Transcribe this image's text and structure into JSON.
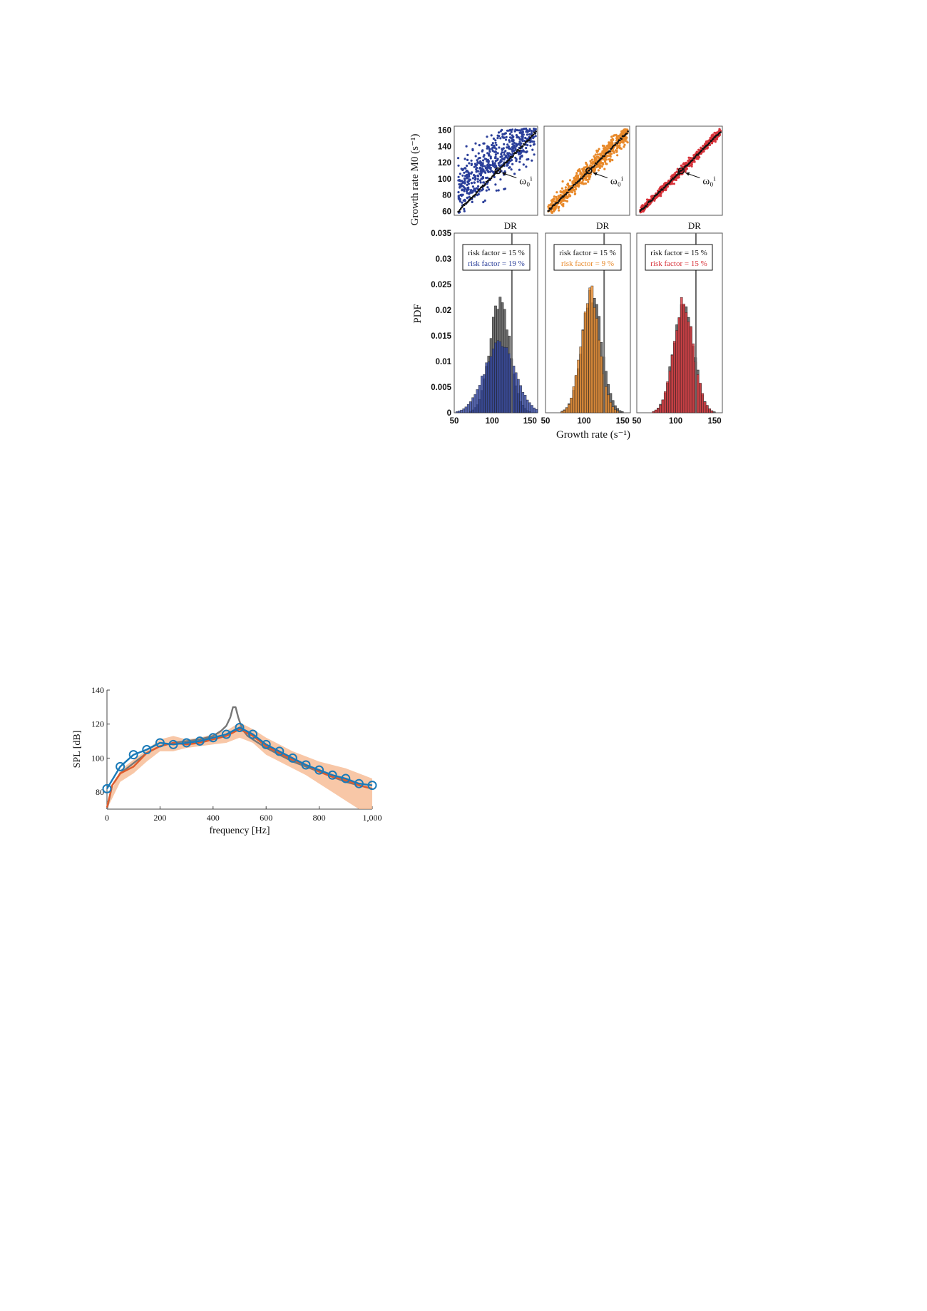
{
  "chart_data": [
    {
      "type": "scatter",
      "panel": "scatter-grid",
      "ylabel": "Growth rate M0 (s⁻¹)",
      "yticks": [
        60,
        80,
        100,
        120,
        140,
        160
      ],
      "ylim": [
        55,
        165
      ],
      "annotation": "ω₀ⁱ",
      "panels": [
        {
          "name": "blue",
          "color": "#2b3f9a",
          "marker": [
            110,
            110
          ]
        },
        {
          "name": "orange",
          "color": "#e8892a",
          "marker": [
            110,
            110
          ]
        },
        {
          "name": "red",
          "color": "#d8333a",
          "marker": [
            110,
            110
          ]
        }
      ]
    },
    {
      "type": "bar",
      "panel": "histograms",
      "xlabel": "Growth rate (s⁻¹)",
      "ylabel": "PDF",
      "xticks": [
        50,
        100,
        150
      ],
      "xlim": [
        50,
        160
      ],
      "ylim": [
        0,
        0.035
      ],
      "yticks": [
        "0",
        "0.005",
        "0.01",
        "0.015",
        "0.02",
        "0.025",
        "0.03",
        "0.035"
      ],
      "dr_label": "DR",
      "dr_value": 126,
      "panels": [
        {
          "name": "blue",
          "color": "#2b3f9a",
          "legend": [
            "risk factor = 15 %",
            "risk factor = 19 %"
          ],
          "ref_peak": 0.022,
          "ref_mean": 110,
          "ref_sd": 13,
          "mean": 110,
          "sd": 20,
          "peak": 0.0135
        },
        {
          "name": "orange",
          "color": "#e8892a",
          "legend": [
            "risk factor = 15 %",
            "risk factor = 9 %"
          ],
          "ref_peak": 0.023,
          "ref_mean": 110,
          "ref_sd": 13,
          "mean": 108,
          "sd": 12,
          "peak": 0.0235
        },
        {
          "name": "red",
          "color": "#d8333a",
          "legend": [
            "risk factor = 15 %",
            "risk factor = 15 %"
          ],
          "ref_peak": 0.0215,
          "ref_mean": 110,
          "ref_sd": 13,
          "mean": 110,
          "sd": 13,
          "peak": 0.0215
        }
      ]
    },
    {
      "type": "line",
      "panel": "spl",
      "xlabel": "frequency [Hz]",
      "ylabel": "SPL [dB]",
      "xticks": [
        "0",
        "200",
        "400",
        "600",
        "800",
        "1,000"
      ],
      "xtick_values": [
        0,
        200,
        400,
        600,
        800,
        1000
      ],
      "yticks": [
        80,
        100,
        120,
        140
      ],
      "xlim": [
        0,
        1000
      ],
      "ylim": [
        70,
        140
      ],
      "series": [
        {
          "color": "#777777",
          "x": [
            0,
            20,
            50,
            100,
            150,
            200,
            250,
            300,
            350,
            400,
            430,
            450,
            465,
            475,
            485,
            495,
            510,
            530,
            560,
            600,
            650,
            700,
            750,
            800,
            850,
            900,
            950,
            1000
          ],
          "y": [
            70,
            84,
            91,
            97,
            103,
            107,
            109,
            110,
            111,
            113,
            116,
            119,
            124,
            130,
            130,
            124,
            117,
            113,
            110,
            106,
            102,
            98,
            95,
            92,
            89,
            86,
            84,
            82
          ]
        },
        {
          "color": "#e05a2a",
          "x": [
            0,
            20,
            50,
            100,
            150,
            200,
            250,
            300,
            350,
            400,
            450,
            500,
            550,
            600,
            650,
            700,
            750,
            800,
            850,
            900,
            950,
            1000
          ],
          "y": [
            71,
            84,
            91,
            95,
            103,
            107,
            109,
            108,
            109,
            111,
            113,
            117,
            113,
            107,
            103,
            99,
            96,
            92,
            89,
            87,
            84,
            82
          ]
        },
        {
          "color": "#1a7ab8",
          "markers": true,
          "x": [
            0,
            50,
            100,
            150,
            200,
            250,
            300,
            350,
            400,
            450,
            500,
            550,
            600,
            650,
            700,
            750,
            800,
            850,
            900,
            950,
            1000
          ],
          "y": [
            82,
            95,
            102,
            105,
            109,
            108,
            109,
            110,
            112,
            114,
            118,
            114,
            108,
            104,
            100,
            96,
            93,
            90,
            88,
            85,
            84
          ]
        }
      ],
      "band": {
        "color": "#f6b48a",
        "x": [
          0,
          50,
          100,
          150,
          200,
          250,
          300,
          350,
          400,
          450,
          500,
          550,
          600,
          650,
          700,
          750,
          800,
          850,
          900,
          950,
          1000
        ],
        "lo": [
          70,
          86,
          91,
          98,
          104,
          104,
          106,
          107,
          108,
          109,
          112,
          109,
          102,
          98,
          94,
          90,
          85,
          80,
          75,
          70,
          70
        ],
        "hi": [
          74,
          93,
          99,
          105,
          111,
          113,
          111,
          112,
          114,
          116,
          121,
          117,
          112,
          108,
          104,
          101,
          98,
          96,
          94,
          91,
          88
        ]
      }
    }
  ]
}
